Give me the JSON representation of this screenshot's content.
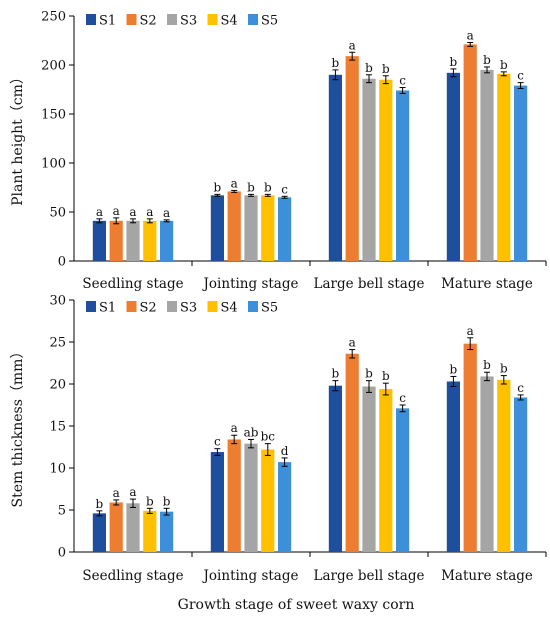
{
  "chart_data": [
    {
      "type": "bar",
      "ylabel": "Plant height（cm）",
      "xlabel": "",
      "ylim": [
        0,
        250
      ],
      "yticks": [
        0,
        50,
        100,
        150,
        200,
        250
      ],
      "categories": [
        "Seedling stage",
        "Jointing stage",
        "Large bell  stage",
        "Mature stage"
      ],
      "legend_position": "top-left",
      "series": [
        {
          "name": "S1",
          "color": "#1f4e9c",
          "values": [
            41,
            67,
            190,
            192
          ],
          "errors": [
            2,
            1,
            5,
            4
          ],
          "labels": [
            "a",
            "b",
            "b",
            "b"
          ]
        },
        {
          "name": "S2",
          "color": "#ed7d31",
          "values": [
            41,
            71,
            209,
            221
          ],
          "errors": [
            3,
            1,
            4,
            2
          ],
          "labels": [
            "a",
            "a",
            "a",
            "a"
          ]
        },
        {
          "name": "S3",
          "color": "#a5a5a5",
          "values": [
            41,
            67,
            186,
            195
          ],
          "errors": [
            2,
            1,
            4,
            3
          ],
          "labels": [
            "a",
            "b",
            "b",
            "b"
          ]
        },
        {
          "name": "S4",
          "color": "#ffc000",
          "values": [
            41,
            67,
            185,
            191
          ],
          "errors": [
            2,
            1,
            4,
            2
          ],
          "labels": [
            "a",
            "b",
            "b",
            "b"
          ]
        },
        {
          "name": "S5",
          "color": "#3e8fd9",
          "values": [
            41,
            65,
            174,
            179
          ],
          "errors": [
            1,
            1,
            3,
            3
          ],
          "labels": [
            "a",
            "c",
            "c",
            "c"
          ]
        }
      ]
    },
    {
      "type": "bar",
      "ylabel": "Stem thickness（mm）",
      "xlabel": "Growth stage of sweet waxy corn",
      "ylim": [
        0,
        30
      ],
      "yticks": [
        0,
        5,
        10,
        15,
        20,
        25,
        30
      ],
      "categories": [
        "Seedling stage",
        "Jointing stage",
        "Large bell  stage",
        "Mature stage"
      ],
      "legend_position": "top-left",
      "series": [
        {
          "name": "S1",
          "color": "#1f4e9c",
          "values": [
            4.6,
            11.9,
            19.8,
            20.3
          ],
          "errors": [
            0.3,
            0.4,
            0.6,
            0.6
          ],
          "labels": [
            "b",
            "c",
            "b",
            "b"
          ]
        },
        {
          "name": "S2",
          "color": "#ed7d31",
          "values": [
            5.9,
            13.4,
            23.6,
            24.8
          ],
          "errors": [
            0.3,
            0.5,
            0.5,
            0.7
          ],
          "labels": [
            "a",
            "a",
            "a",
            "a"
          ]
        },
        {
          "name": "S3",
          "color": "#a5a5a5",
          "values": [
            5.8,
            12.9,
            19.7,
            20.9
          ],
          "errors": [
            0.5,
            0.5,
            0.7,
            0.5
          ],
          "labels": [
            "a",
            "ab",
            "b",
            "b"
          ]
        },
        {
          "name": "S4",
          "color": "#ffc000",
          "values": [
            4.9,
            12.2,
            19.4,
            20.5
          ],
          "errors": [
            0.3,
            0.7,
            0.7,
            0.5
          ],
          "labels": [
            "b",
            "bc",
            "b",
            "b"
          ]
        },
        {
          "name": "S5",
          "color": "#3e8fd9",
          "values": [
            4.8,
            10.7,
            17.1,
            18.4
          ],
          "errors": [
            0.4,
            0.5,
            0.4,
            0.3
          ],
          "labels": [
            "b",
            "d",
            "c",
            "c"
          ]
        }
      ]
    }
  ]
}
